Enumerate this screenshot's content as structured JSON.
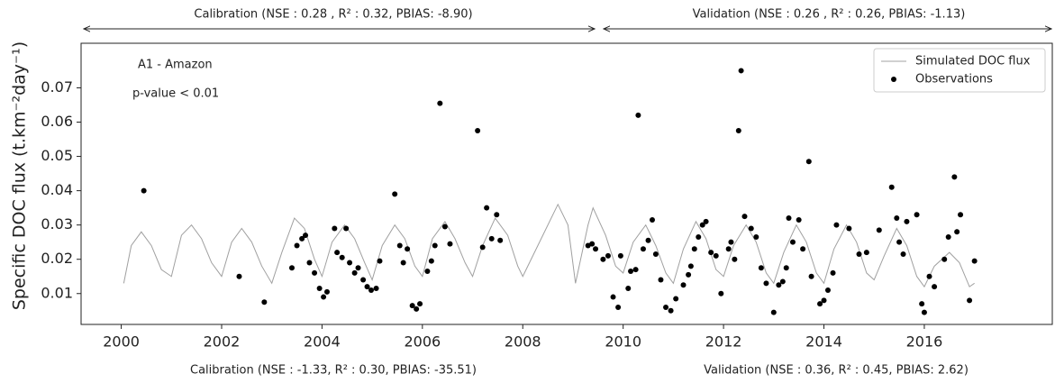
{
  "chart_data": {
    "type": "line",
    "ylabel": "Specific DOC flux (t.km⁻²day⁻¹)",
    "annotations": [
      "A1 - Amazon",
      "p-value < 0.01"
    ],
    "top_labels": [
      "Calibration (NSE : 0.28 , R² : 0.32, PBIAS: -8.90)",
      "Validation (NSE : 0.26 , R² : 0.26, PBIAS: -1.13)"
    ],
    "bottom_labels": [
      "Calibration (NSE : -1.33, R² : 0.30, PBIAS: -35.51)",
      "Validation (NSE : 0.36, R² : 0.45, PBIAS: 2.62)"
    ],
    "xlim": [
      1999.2,
      2018.55
    ],
    "xticks": [
      2000,
      2002,
      2004,
      2006,
      2008,
      2010,
      2012,
      2014,
      2016
    ],
    "ylim": [
      0.001,
      0.083
    ],
    "yticks": [
      0.01,
      0.02,
      0.03,
      0.04,
      0.05,
      0.06,
      0.07
    ],
    "grid": false,
    "legend": "upper right",
    "series": [
      {
        "name": "Simulated DOC flux",
        "color": "#a0a0a0",
        "type": "line",
        "x": [
          2000.05,
          2000.2,
          2000.4,
          2000.6,
          2000.8,
          2001.0,
          2001.2,
          2001.4,
          2001.6,
          2001.8,
          2002.0,
          2002.2,
          2002.4,
          2002.6,
          2002.8,
          2003.0,
          2003.2,
          2003.45,
          2003.65,
          2003.85,
          2004.0,
          2004.2,
          2004.45,
          2004.65,
          2004.85,
          2005.0,
          2005.2,
          2005.45,
          2005.65,
          2005.85,
          2006.0,
          2006.2,
          2006.45,
          2006.65,
          2006.85,
          2007.0,
          2007.2,
          2007.45,
          2007.7,
          2007.9,
          2008.0,
          2008.3,
          2008.7,
          2008.9,
          2009.05,
          2009.3,
          2009.4,
          2009.65,
          2009.85,
          2010.0,
          2010.2,
          2010.45,
          2010.65,
          2010.85,
          2011.0,
          2011.2,
          2011.45,
          2011.65,
          2011.85,
          2012.0,
          2012.2,
          2012.45,
          2012.65,
          2012.85,
          2013.0,
          2013.2,
          2013.45,
          2013.65,
          2013.85,
          2014.0,
          2014.2,
          2014.45,
          2014.65,
          2014.85,
          2015.0,
          2015.2,
          2015.45,
          2015.65,
          2015.85,
          2016.0,
          2016.2,
          2016.5,
          2016.7,
          2016.9,
          2017.0
        ],
        "values": [
          0.013,
          0.024,
          0.028,
          0.024,
          0.017,
          0.015,
          0.027,
          0.03,
          0.026,
          0.019,
          0.015,
          0.025,
          0.029,
          0.025,
          0.018,
          0.013,
          0.022,
          0.032,
          0.029,
          0.02,
          0.015,
          0.025,
          0.03,
          0.026,
          0.019,
          0.014,
          0.024,
          0.03,
          0.026,
          0.018,
          0.015,
          0.026,
          0.031,
          0.026,
          0.019,
          0.015,
          0.024,
          0.032,
          0.027,
          0.018,
          0.015,
          0.024,
          0.036,
          0.03,
          0.013,
          0.03,
          0.035,
          0.027,
          0.018,
          0.016,
          0.025,
          0.03,
          0.024,
          0.016,
          0.013,
          0.023,
          0.031,
          0.026,
          0.017,
          0.015,
          0.024,
          0.03,
          0.025,
          0.016,
          0.013,
          0.022,
          0.03,
          0.025,
          0.016,
          0.013,
          0.023,
          0.03,
          0.025,
          0.016,
          0.014,
          0.021,
          0.029,
          0.024,
          0.015,
          0.012,
          0.018,
          0.022,
          0.019,
          0.012,
          0.013
        ]
      },
      {
        "name": "Observations",
        "color": "#000000",
        "type": "scatter",
        "x": [
          2000.45,
          2002.35,
          2002.85,
          2003.4,
          2003.5,
          2003.6,
          2003.67,
          2003.75,
          2003.85,
          2003.95,
          2004.03,
          2004.1,
          2004.25,
          2004.3,
          2004.4,
          2004.48,
          2004.55,
          2004.65,
          2004.72,
          2004.82,
          2004.9,
          2004.98,
          2005.08,
          2005.15,
          2005.45,
          2005.55,
          2005.62,
          2005.7,
          2005.8,
          2005.88,
          2005.95,
          2006.1,
          2006.18,
          2006.25,
          2006.35,
          2006.45,
          2006.55,
          2007.1,
          2007.2,
          2007.28,
          2007.38,
          2007.48,
          2007.55,
          2009.3,
          2009.38,
          2009.45,
          2009.6,
          2009.7,
          2009.8,
          2009.9,
          2009.95,
          2010.1,
          2010.15,
          2010.25,
          2010.3,
          2010.4,
          2010.5,
          2010.58,
          2010.65,
          2010.75,
          2010.85,
          2010.95,
          2011.05,
          2011.2,
          2011.3,
          2011.35,
          2011.42,
          2011.5,
          2011.58,
          2011.65,
          2011.75,
          2011.85,
          2011.95,
          2012.1,
          2012.15,
          2012.22,
          2012.3,
          2012.35,
          2012.42,
          2012.55,
          2012.65,
          2012.75,
          2012.85,
          2013.0,
          2013.1,
          2013.18,
          2013.25,
          2013.3,
          2013.38,
          2013.5,
          2013.58,
          2013.7,
          2013.75,
          2013.92,
          2014.0,
          2014.08,
          2014.18,
          2014.25,
          2014.5,
          2014.7,
          2014.85,
          2015.1,
          2015.35,
          2015.45,
          2015.5,
          2015.58,
          2015.65,
          2015.85,
          2015.95,
          2016.0,
          2016.1,
          2016.2,
          2016.4,
          2016.48,
          2016.6,
          2016.65,
          2016.72,
          2016.9,
          2017.0
        ],
        "values": [
          0.04,
          0.015,
          0.0075,
          0.0175,
          0.024,
          0.026,
          0.027,
          0.019,
          0.016,
          0.0115,
          0.009,
          0.0105,
          0.029,
          0.022,
          0.0205,
          0.029,
          0.019,
          0.016,
          0.0175,
          0.014,
          0.012,
          0.011,
          0.0115,
          0.0195,
          0.039,
          0.024,
          0.019,
          0.023,
          0.0065,
          0.0055,
          0.007,
          0.0165,
          0.0195,
          0.024,
          0.0655,
          0.0295,
          0.0245,
          0.0575,
          0.0235,
          0.035,
          0.026,
          0.033,
          0.0255,
          0.024,
          0.0245,
          0.023,
          0.02,
          0.021,
          0.009,
          0.006,
          0.021,
          0.0115,
          0.0165,
          0.017,
          0.062,
          0.023,
          0.0255,
          0.0315,
          0.0215,
          0.014,
          0.006,
          0.005,
          0.0085,
          0.0125,
          0.0155,
          0.018,
          0.023,
          0.0265,
          0.03,
          0.031,
          0.022,
          0.021,
          0.01,
          0.023,
          0.025,
          0.02,
          0.0575,
          0.075,
          0.0325,
          0.029,
          0.0265,
          0.0175,
          0.013,
          0.0045,
          0.0125,
          0.0135,
          0.0175,
          0.032,
          0.025,
          0.0315,
          0.023,
          0.0485,
          0.015,
          0.007,
          0.008,
          0.011,
          0.016,
          0.03,
          0.029,
          0.0215,
          0.022,
          0.0285,
          0.041,
          0.032,
          0.025,
          0.0215,
          0.031,
          0.033,
          0.007,
          0.0045,
          0.015,
          0.012,
          0.02,
          0.0265,
          0.044,
          0.028,
          0.033,
          0.008,
          0.0195
        ]
      }
    ]
  }
}
